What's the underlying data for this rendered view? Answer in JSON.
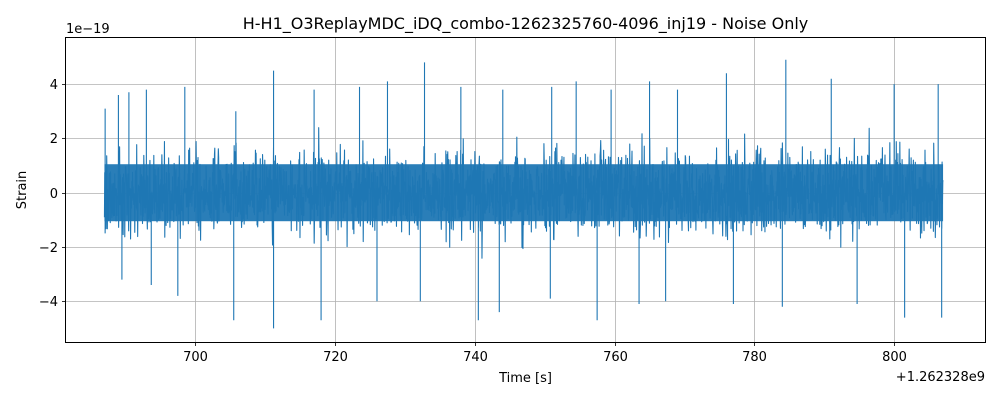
{
  "chart_data": {
    "type": "line",
    "title": "H-H1_O3ReplayMDC_iDQ_combo-1262325760-4096_inj19 - Noise Only",
    "xlabel": "Time [s]",
    "ylabel": "Strain",
    "x_offset_label": "+1.262328e9",
    "y_scale_label": "1e−19",
    "xlim": [
      681.5,
      813
    ],
    "ylim": [
      -5.5,
      5.7
    ],
    "x_ticks": [
      700,
      720,
      740,
      760,
      780,
      800
    ],
    "x_tick_labels": [
      "700",
      "720",
      "740",
      "760",
      "780",
      "800"
    ],
    "y_ticks": [
      -4,
      -2,
      0,
      2,
      4
    ],
    "y_tick_labels": [
      "−4",
      "−2",
      "0",
      "2",
      "4"
    ],
    "grid": true,
    "series": [
      {
        "color": "#1f77b4",
        "x_range": [
          687.0,
          807.0
        ],
        "envelope_peaks": [
          {
            "x": 687.1,
            "y": 3.1
          },
          {
            "x": 689.0,
            "y": 3.6
          },
          {
            "x": 690.5,
            "y": 3.7
          },
          {
            "x": 693.0,
            "y": 3.8
          },
          {
            "x": 698.5,
            "y": 3.9
          },
          {
            "x": 705.8,
            "y": 3.0
          },
          {
            "x": 711.2,
            "y": 4.5
          },
          {
            "x": 717.0,
            "y": 3.8
          },
          {
            "x": 723.5,
            "y": 3.9
          },
          {
            "x": 727.5,
            "y": 4.1
          },
          {
            "x": 732.8,
            "y": 4.8
          },
          {
            "x": 738.0,
            "y": 3.9
          },
          {
            "x": 744.0,
            "y": 3.8
          },
          {
            "x": 751.0,
            "y": 3.9
          },
          {
            "x": 754.5,
            "y": 4.1
          },
          {
            "x": 759.5,
            "y": 3.8
          },
          {
            "x": 765.0,
            "y": 4.1
          },
          {
            "x": 769.0,
            "y": 3.8
          },
          {
            "x": 776.0,
            "y": 4.4
          },
          {
            "x": 784.5,
            "y": 4.9
          },
          {
            "x": 791.0,
            "y": 4.2
          },
          {
            "x": 800.0,
            "y": 4.0
          },
          {
            "x": 806.3,
            "y": 4.0
          }
        ],
        "envelope_troughs": [
          {
            "x": 687.1,
            "y": -1.5
          },
          {
            "x": 689.5,
            "y": -3.2
          },
          {
            "x": 693.7,
            "y": -3.4
          },
          {
            "x": 697.5,
            "y": -3.8
          },
          {
            "x": 705.5,
            "y": -4.7
          },
          {
            "x": 711.2,
            "y": -5.0
          },
          {
            "x": 718.0,
            "y": -4.7
          },
          {
            "x": 726.0,
            "y": -4.0
          },
          {
            "x": 732.2,
            "y": -4.0
          },
          {
            "x": 740.5,
            "y": -4.7
          },
          {
            "x": 743.5,
            "y": -4.4
          },
          {
            "x": 750.8,
            "y": -3.9
          },
          {
            "x": 757.5,
            "y": -4.7
          },
          {
            "x": 763.5,
            "y": -4.1
          },
          {
            "x": 767.3,
            "y": -4.0
          },
          {
            "x": 777.0,
            "y": -4.1
          },
          {
            "x": 784.0,
            "y": -4.2
          },
          {
            "x": 794.7,
            "y": -4.1
          },
          {
            "x": 801.5,
            "y": -4.6
          },
          {
            "x": 806.8,
            "y": -4.6
          }
        ],
        "typical_amplitude": 1.6
      }
    ]
  }
}
